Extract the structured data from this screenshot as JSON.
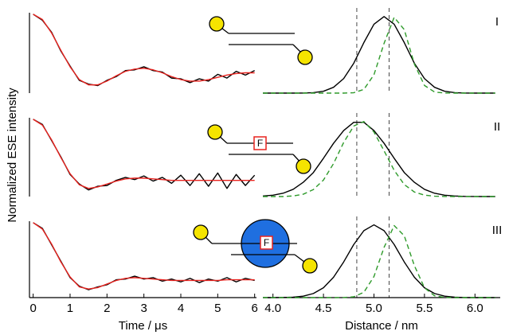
{
  "ylabel": "Normalized ESE intensity",
  "schematic_labels": [
    "F",
    "F"
  ],
  "chart_data": [
    {
      "type": "line",
      "xlim": [
        -0.1,
        6.05
      ],
      "ylim": [
        -0.05,
        1.02
      ],
      "x": [
        0,
        0.25,
        0.5,
        0.75,
        1,
        1.25,
        1.5,
        1.75,
        2,
        2.25,
        2.5,
        2.75,
        3,
        3.25,
        3.5,
        3.75,
        4,
        4.25,
        4.5,
        4.75,
        5,
        5.25,
        5.5,
        5.75,
        6
      ],
      "series": [
        {
          "color": "#000000",
          "values": [
            1.0,
            0.92,
            0.76,
            0.51,
            0.31,
            0.12,
            0.07,
            0.05,
            0.12,
            0.17,
            0.25,
            0.26,
            0.3,
            0.25,
            0.23,
            0.15,
            0.14,
            0.09,
            0.14,
            0.11,
            0.2,
            0.15,
            0.24,
            0.19,
            0.25
          ]
        },
        {
          "color": "#e8231f",
          "values": [
            1.0,
            0.93,
            0.75,
            0.52,
            0.3,
            0.13,
            0.06,
            0.06,
            0.11,
            0.18,
            0.24,
            0.27,
            0.28,
            0.26,
            0.22,
            0.17,
            0.13,
            0.11,
            0.11,
            0.13,
            0.16,
            0.19,
            0.21,
            0.22,
            0.22
          ]
        }
      ]
    },
    {
      "type": "line",
      "xlim": [
        3.9,
        6.25
      ],
      "ylim": [
        0,
        1.05
      ],
      "label": "I",
      "ref_lines": [
        4.83,
        5.15
      ],
      "x": [
        3.9,
        4.0,
        4.1,
        4.2,
        4.3,
        4.4,
        4.5,
        4.6,
        4.7,
        4.8,
        4.9,
        5.0,
        5.1,
        5.2,
        5.3,
        5.4,
        5.5,
        5.6,
        5.7,
        5.8,
        5.9,
        6.0,
        6.1,
        6.2
      ],
      "series": [
        {
          "color": "#000000",
          "dash": false,
          "values": [
            0,
            0,
            0,
            0,
            0.001,
            0.006,
            0.024,
            0.076,
            0.19,
            0.39,
            0.66,
            0.9,
            1,
            0.9,
            0.66,
            0.39,
            0.19,
            0.076,
            0.024,
            0.006,
            0.001,
            0,
            0,
            0
          ]
        },
        {
          "color": "#2e9a2a",
          "dash": true,
          "values": [
            0,
            0,
            0,
            0,
            0,
            0,
            0,
            0,
            0,
            0.005,
            0.048,
            0.24,
            0.65,
            0.99,
            0.83,
            0.38,
            0.1,
            0.014,
            0.001,
            0,
            0,
            0,
            0,
            0
          ]
        }
      ]
    },
    {
      "type": "line",
      "xlim": [
        -0.1,
        6.05
      ],
      "ylim": [
        -0.05,
        1.02
      ],
      "x": [
        0,
        0.25,
        0.5,
        0.75,
        1,
        1.25,
        1.5,
        1.75,
        2,
        2.25,
        2.5,
        2.75,
        3,
        3.25,
        3.5,
        3.75,
        4,
        4.25,
        4.5,
        4.75,
        5,
        5.25,
        5.5,
        5.75,
        6
      ],
      "series": [
        {
          "color": "#000000",
          "values": [
            1.0,
            0.93,
            0.71,
            0.49,
            0.25,
            0.12,
            0.04,
            0.09,
            0.1,
            0.17,
            0.21,
            0.18,
            0.23,
            0.16,
            0.21,
            0.13,
            0.24,
            0.1,
            0.26,
            0.09,
            0.27,
            0.06,
            0.25,
            0.1,
            0.24
          ]
        },
        {
          "color": "#e8231f",
          "values": [
            1.0,
            0.92,
            0.72,
            0.48,
            0.26,
            0.11,
            0.06,
            0.08,
            0.12,
            0.16,
            0.19,
            0.2,
            0.2,
            0.19,
            0.18,
            0.17,
            0.17,
            0.17,
            0.17,
            0.17,
            0.17,
            0.17,
            0.17,
            0.17,
            0.17
          ]
        }
      ]
    },
    {
      "type": "line",
      "xlim": [
        3.9,
        6.25
      ],
      "ylim": [
        0,
        1.05
      ],
      "label": "II",
      "ref_lines": [
        4.83,
        5.15
      ],
      "x": [
        3.9,
        4.0,
        4.1,
        4.2,
        4.3,
        4.4,
        4.5,
        4.6,
        4.7,
        4.8,
        4.9,
        5.0,
        5.1,
        5.2,
        5.3,
        5.4,
        5.5,
        5.6,
        5.7,
        5.8,
        5.9,
        6.0,
        6.1,
        6.2
      ],
      "series": [
        {
          "color": "#000000",
          "dash": false,
          "values": [
            0.007,
            0.018,
            0.044,
            0.096,
            0.19,
            0.32,
            0.51,
            0.71,
            0.88,
            0.99,
            0.99,
            0.88,
            0.71,
            0.51,
            0.32,
            0.19,
            0.096,
            0.044,
            0.018,
            0.007,
            0.002,
            0.001,
            0,
            0
          ]
        },
        {
          "color": "#2e9a2a",
          "dash": true,
          "values": [
            0,
            0,
            0,
            0.008,
            0.031,
            0.093,
            0.22,
            0.44,
            0.72,
            0.94,
            1,
            0.86,
            0.61,
            0.35,
            0.16,
            0.06,
            0.019,
            0.005,
            0.001,
            0,
            0,
            0,
            0,
            0
          ]
        }
      ]
    },
    {
      "type": "line",
      "xlim": [
        -0.1,
        6.05
      ],
      "ylim": [
        -0.05,
        1.02
      ],
      "xlabel": "Time / μs",
      "xticks": [
        0,
        1,
        2,
        3,
        4,
        5,
        6
      ],
      "x": [
        0,
        0.25,
        0.5,
        0.75,
        1,
        1.25,
        1.5,
        1.75,
        2,
        2.25,
        2.5,
        2.75,
        3,
        3.25,
        3.5,
        3.75,
        4,
        4.25,
        4.5,
        4.75,
        5,
        5.25,
        5.5,
        5.75,
        6
      ],
      "series": [
        {
          "color": "#000000",
          "values": [
            1.0,
            0.92,
            0.69,
            0.46,
            0.23,
            0.11,
            0.06,
            0.1,
            0.13,
            0.2,
            0.21,
            0.25,
            0.21,
            0.23,
            0.18,
            0.21,
            0.17,
            0.22,
            0.16,
            0.21,
            0.18,
            0.23,
            0.17,
            0.22,
            0.19
          ]
        },
        {
          "color": "#e8231f",
          "values": [
            1.0,
            0.91,
            0.7,
            0.45,
            0.24,
            0.1,
            0.07,
            0.09,
            0.14,
            0.19,
            0.22,
            0.23,
            0.22,
            0.21,
            0.2,
            0.19,
            0.19,
            0.19,
            0.19,
            0.19,
            0.19,
            0.2,
            0.2,
            0.2,
            0.2
          ]
        }
      ]
    },
    {
      "type": "line",
      "xlim": [
        3.9,
        6.25
      ],
      "ylim": [
        0,
        1.05
      ],
      "label": "III",
      "ref_lines": [
        4.83,
        5.15
      ],
      "xlabel": "Distance / nm",
      "xticks": [
        {
          "value": 4,
          "label": "4.0"
        },
        {
          "value": 4.5,
          "label": "4.5"
        },
        {
          "value": 5,
          "label": "5.0"
        },
        {
          "value": 5.5,
          "label": "5.5"
        },
        {
          "value": 6,
          "label": "6.0"
        }
      ],
      "x": [
        3.9,
        4.0,
        4.1,
        4.2,
        4.3,
        4.4,
        4.5,
        4.6,
        4.7,
        4.8,
        4.9,
        5.0,
        5.1,
        5.2,
        5.3,
        5.4,
        5.5,
        5.6,
        5.7,
        5.8,
        5.9,
        6.0,
        6.1,
        6.2
      ],
      "series": [
        {
          "color": "#000000",
          "dash": false,
          "values": [
            0,
            0,
            0.002,
            0.006,
            0.02,
            0.056,
            0.135,
            0.28,
            0.49,
            0.73,
            0.92,
            1,
            0.92,
            0.73,
            0.49,
            0.28,
            0.135,
            0.056,
            0.02,
            0.006,
            0.001,
            0,
            0,
            0
          ]
        },
        {
          "color": "#2e9a2a",
          "dash": true,
          "values": [
            0,
            0,
            0,
            0,
            0,
            0,
            0,
            0,
            0.001,
            0.011,
            0.073,
            0.29,
            0.69,
            0.99,
            0.85,
            0.44,
            0.135,
            0.025,
            0.003,
            0,
            0,
            0,
            0,
            0
          ]
        }
      ]
    }
  ]
}
